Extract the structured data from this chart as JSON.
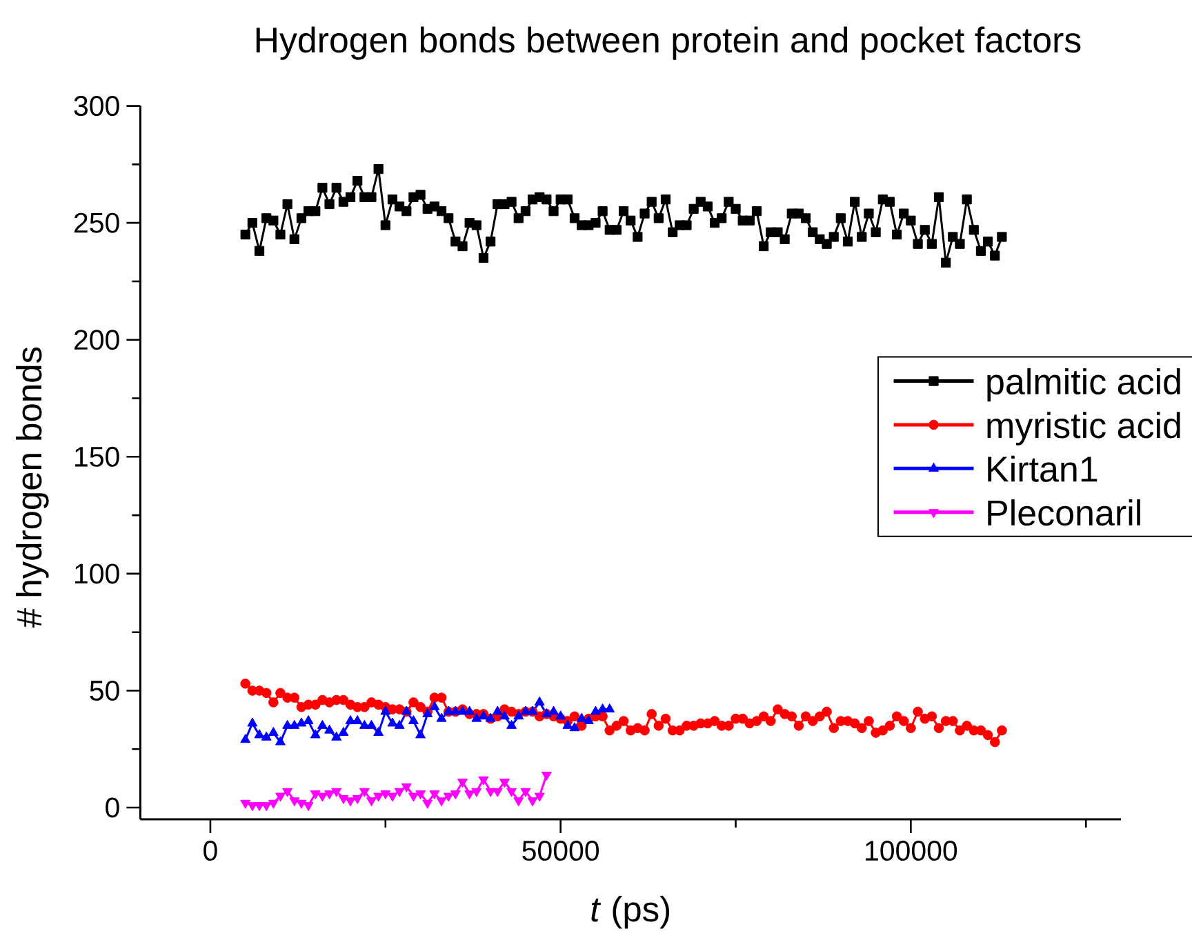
{
  "chart_data": {
    "type": "line",
    "title": "Hydrogen bonds between protein and pocket factors",
    "xlabel": "*t* (ps)",
    "ylabel": "# hydrogen bonds",
    "xlim": [
      -10000,
      130000
    ],
    "xticks": [
      0,
      {
        "value": 25000,
        "label": null
      },
      50000,
      {
        "value": 75000,
        "label": null
      },
      100000,
      {
        "value": 125000,
        "label": null
      }
    ],
    "ylim": [
      -5,
      300
    ],
    "yticks": [
      0,
      {
        "value": 25,
        "label": null
      },
      50,
      {
        "value": 75,
        "label": null
      },
      100,
      {
        "value": 125,
        "label": null
      },
      150,
      {
        "value": 175,
        "label": null
      },
      200,
      {
        "value": 225,
        "label": null
      },
      250,
      {
        "value": 275,
        "label": null
      },
      300
    ],
    "legend": "right",
    "line_style": "solid",
    "x": [
      5000,
      6000,
      7000,
      8000,
      9000,
      10000,
      11000,
      12000,
      13000,
      14000,
      15000,
      16000,
      17000,
      18000,
      19000,
      20000,
      21000,
      22000,
      23000,
      24000,
      25000,
      26000,
      27000,
      28000,
      29000,
      30000,
      31000,
      32000,
      33000,
      34000,
      35000,
      36000,
      37000,
      38000,
      39000,
      40000,
      41000,
      42000,
      43000,
      44000,
      45000,
      46000,
      47000,
      48000,
      49000,
      50000,
      51000,
      52000,
      53000,
      54000,
      55000,
      56000,
      57000,
      58000,
      59000,
      60000,
      61000,
      62000,
      63000,
      64000,
      65000,
      66000,
      67000,
      68000,
      69000,
      70000,
      71000,
      72000,
      73000,
      74000,
      75000,
      76000,
      77000,
      78000,
      79000,
      80000,
      81000,
      82000,
      83000,
      84000,
      85000,
      86000,
      87000,
      88000,
      89000,
      90000,
      91000,
      92000,
      93000,
      94000,
      95000,
      96000,
      97000,
      98000,
      99000,
      100000,
      101000,
      102000,
      103000,
      104000,
      105000,
      106000,
      107000,
      108000,
      109000,
      110000,
      111000,
      112000,
      113000
    ],
    "series": [
      {
        "name": "palmitic acid",
        "color": "#000000",
        "marker": "square",
        "values": [
          245,
          250,
          238,
          252,
          251,
          245,
          258,
          243,
          252,
          255,
          255,
          265,
          258,
          265,
          259,
          261,
          268,
          261,
          261,
          273,
          249,
          260,
          257,
          255,
          261,
          262,
          256,
          257,
          255,
          252,
          242,
          240,
          250,
          249,
          235,
          242,
          258,
          258,
          259,
          252,
          255,
          260,
          261,
          260,
          255,
          260,
          260,
          252,
          249,
          249,
          250,
          255,
          247,
          247,
          255,
          251,
          244,
          254,
          259,
          252,
          260,
          246,
          249,
          249,
          256,
          259,
          257,
          250,
          252,
          259,
          256,
          251,
          251,
          255,
          240,
          246,
          246,
          243,
          254,
          254,
          252,
          246,
          243,
          241,
          244,
          252,
          242,
          259,
          244,
          254,
          246,
          260,
          259,
          245,
          254,
          251,
          241,
          247,
          241,
          261,
          233,
          244,
          241,
          260,
          247,
          238,
          242,
          236,
          244
        ]
      },
      {
        "name": "myristic acid",
        "color": "#ff0000",
        "marker": "circle",
        "values": [
          53,
          50,
          50,
          49,
          45,
          49,
          47,
          47,
          43,
          44,
          44,
          46,
          45,
          46,
          46,
          44,
          43,
          43,
          45,
          44,
          43,
          42,
          42,
          41,
          45,
          43,
          41,
          47,
          47,
          41,
          41,
          42,
          40,
          40,
          40,
          38,
          39,
          42,
          41,
          40,
          41,
          41,
          39,
          40,
          39,
          38,
          37,
          39,
          35,
          38,
          39,
          39,
          33,
          35,
          37,
          33,
          34,
          33,
          40,
          35,
          38,
          33,
          33,
          35,
          35,
          36,
          36,
          37,
          35,
          35,
          38,
          38,
          36,
          37,
          39,
          37,
          42,
          40,
          39,
          35,
          39,
          37,
          39,
          41,
          34,
          37,
          37,
          36,
          34,
          37,
          32,
          33,
          35,
          39,
          37,
          34,
          41,
          38,
          39,
          34,
          37,
          37,
          33,
          35,
          33,
          33,
          31,
          28,
          33
        ]
      },
      {
        "name": "Kirtan1",
        "color": "#0000ff",
        "marker": "triangle",
        "x": [
          5000,
          6000,
          7000,
          8000,
          9000,
          10000,
          11000,
          12000,
          13000,
          14000,
          15000,
          16000,
          17000,
          18000,
          19000,
          20000,
          21000,
          22000,
          23000,
          24000,
          25000,
          26000,
          27000,
          28000,
          29000,
          30000,
          31000,
          32000,
          33000,
          34000,
          35000,
          36000,
          37000,
          38000,
          39000,
          40000,
          41000,
          42000,
          43000,
          44000,
          45000,
          46000,
          47000,
          48000,
          49000,
          50000,
          51000,
          52000,
          53000,
          54000,
          55000,
          56000,
          57000
        ],
        "values": [
          29,
          36,
          31,
          30,
          32,
          28,
          35,
          35,
          36,
          37,
          31,
          35,
          33,
          30,
          32,
          37,
          37,
          35,
          35,
          32,
          41,
          36,
          35,
          41,
          37,
          31,
          40,
          43,
          38,
          41,
          41,
          41,
          41,
          38,
          39,
          38,
          41,
          39,
          35,
          39,
          41,
          41,
          45,
          40,
          41,
          39,
          35,
          34,
          38,
          37,
          41,
          42,
          42
        ]
      },
      {
        "name": "Pleconaril",
        "color": "#ff00ff",
        "marker": "triangle-down",
        "x": [
          5000,
          6000,
          7000,
          8000,
          9000,
          10000,
          11000,
          12000,
          13000,
          14000,
          15000,
          16000,
          17000,
          18000,
          19000,
          20000,
          21000,
          22000,
          23000,
          24000,
          25000,
          26000,
          27000,
          28000,
          29000,
          30000,
          31000,
          32000,
          33000,
          34000,
          35000,
          36000,
          37000,
          38000,
          39000,
          40000,
          41000,
          42000,
          43000,
          44000,
          45000,
          46000,
          47000,
          48000
        ],
        "values": [
          2,
          1,
          1,
          1,
          2,
          5,
          7,
          3,
          2,
          1,
          6,
          5,
          6,
          7,
          4,
          3,
          4,
          7,
          3,
          5,
          6,
          5,
          7,
          9,
          5,
          6,
          2,
          6,
          3,
          5,
          6,
          11,
          6,
          7,
          12,
          7,
          7,
          11,
          7,
          3,
          7,
          3,
          5,
          14
        ]
      }
    ]
  }
}
